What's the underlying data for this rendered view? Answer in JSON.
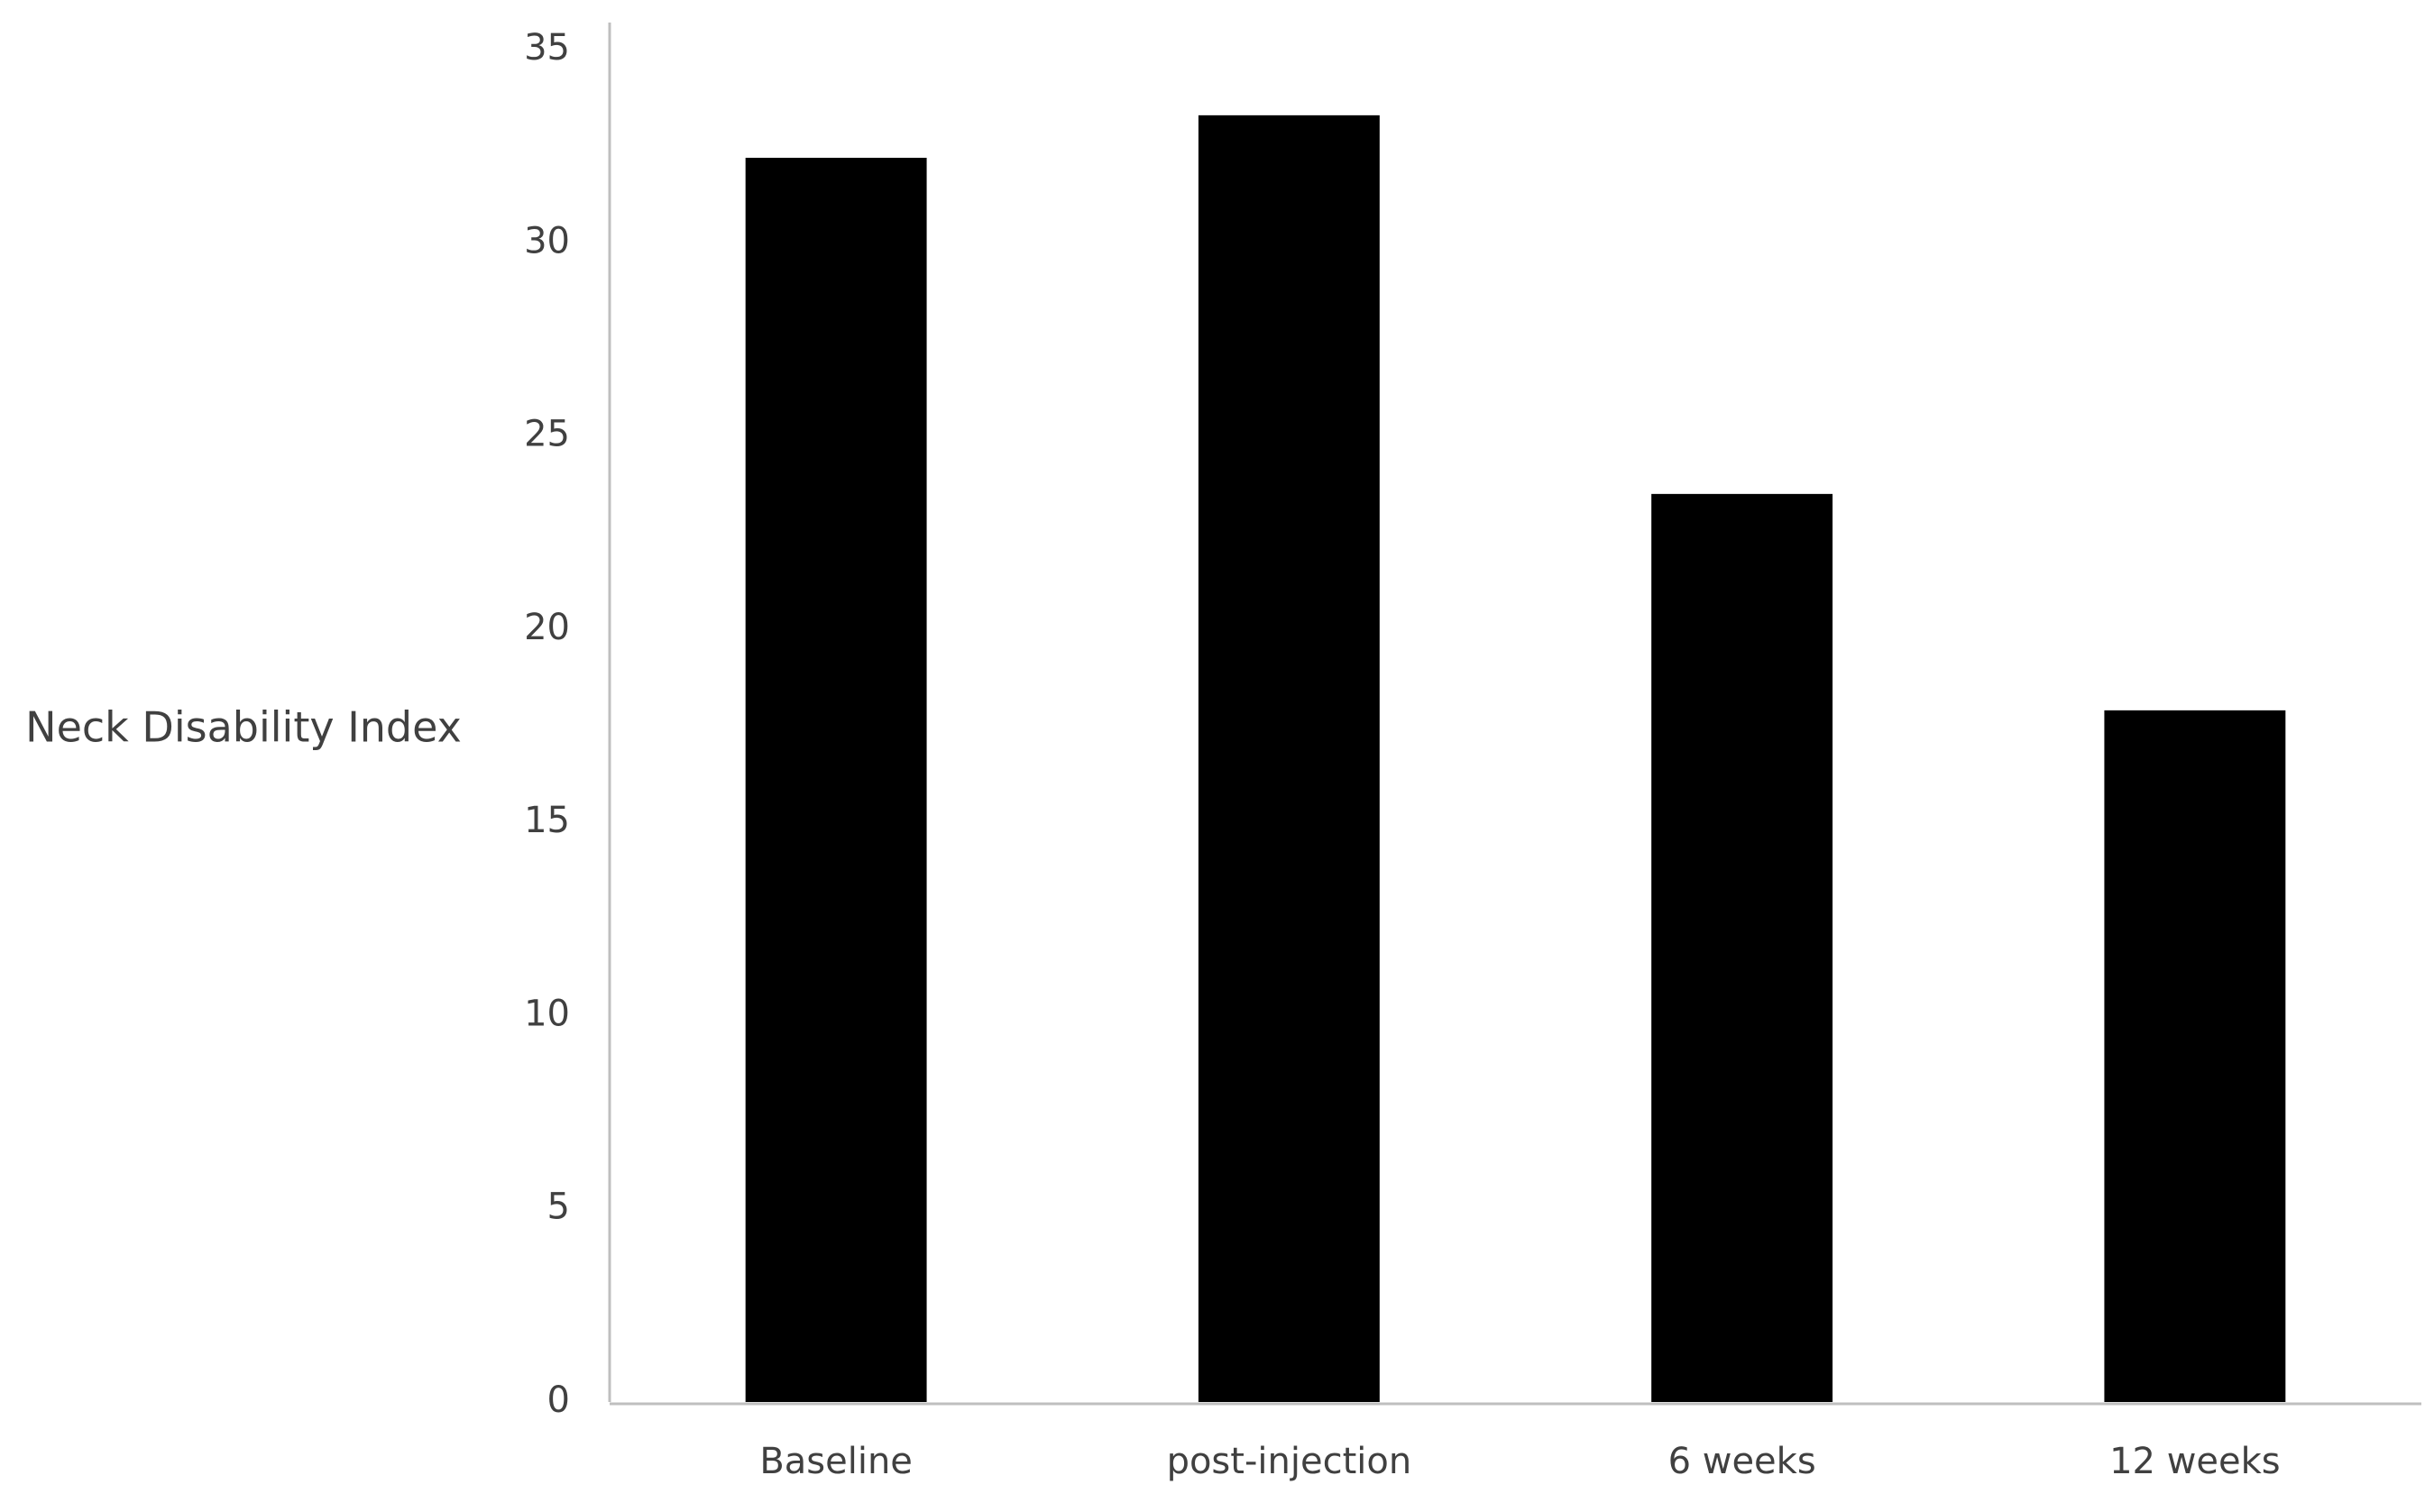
{
  "chart_data": {
    "type": "bar",
    "title": "",
    "xlabel": "",
    "ylabel": "Neck Disability Index",
    "categories": [
      "Baseline",
      "post-injection",
      "6 weeks",
      "12 weeks"
    ],
    "values": [
      32.2,
      33.3,
      23.5,
      17.9
    ],
    "ylim": [
      0,
      35
    ],
    "yticks": [
      "0",
      "5",
      "10",
      "15",
      "20",
      "25",
      "30",
      "35"
    ],
    "grid": false,
    "legend": "none",
    "bar_color": "#000000",
    "axis_color": "#bfbfbf",
    "text_color": "#404040"
  }
}
